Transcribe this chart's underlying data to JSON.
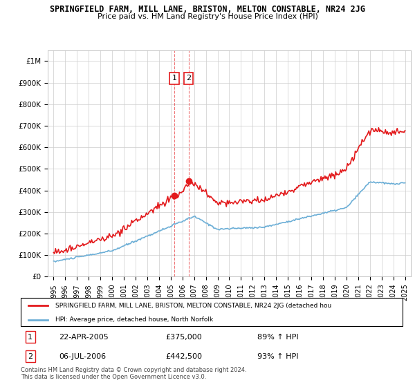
{
  "title": "SPRINGFIELD FARM, MILL LANE, BRISTON, MELTON CONSTABLE, NR24 2JG",
  "subtitle": "Price paid vs. HM Land Registry's House Price Index (HPI)",
  "hpi_color": "#6baed6",
  "price_color": "#e31a1c",
  "purchase1_date": "22-APR-2005",
  "purchase1_price": 375000,
  "purchase1_hpi": "89% ↑ HPI",
  "purchase1_year": 2005.31,
  "purchase2_date": "06-JUL-2006",
  "purchase2_price": 442500,
  "purchase2_hpi": "93% ↑ HPI",
  "purchase2_year": 2006.52,
  "legend_label_red": "SPRINGFIELD FARM, MILL LANE, BRISTON, MELTON CONSTABLE, NR24 2JG (detached hou",
  "legend_label_blue": "HPI: Average price, detached house, North Norfolk",
  "footer": "Contains HM Land Registry data © Crown copyright and database right 2024.\nThis data is licensed under the Open Government Licence v3.0.",
  "yticks": [
    0,
    100000,
    200000,
    300000,
    400000,
    500000,
    600000,
    700000,
    800000,
    900000,
    1000000
  ],
  "ytick_labels": [
    "£0",
    "£100K",
    "£200K",
    "£300K",
    "£400K",
    "£500K",
    "£600K",
    "£700K",
    "£800K",
    "£900K",
    "£1M"
  ],
  "ylim": [
    0,
    1050000
  ],
  "background_color": "#ffffff",
  "grid_color": "#cccccc"
}
